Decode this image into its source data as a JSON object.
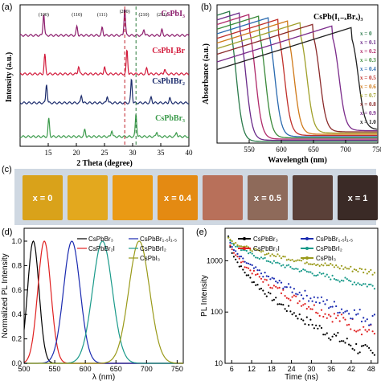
{
  "panels": {
    "a": {
      "letter": "(a)",
      "xlabel": "2 Theta (degree)",
      "ylabel": "Intensity (a.u.)",
      "xticks": [
        "15",
        "20",
        "25",
        "30",
        "35",
        "40"
      ],
      "peak_labels": [
        "(100)",
        "(110)",
        "(111)",
        "(200)",
        "(210)",
        "(211)"
      ],
      "curves": [
        {
          "name": "CsPbI₃",
          "color": "#8b1a6b"
        },
        {
          "name": "CsPbI₂Br",
          "color": "#d2193a"
        },
        {
          "name": "CsPbIBr₂",
          "color": "#1a2a6b"
        },
        {
          "name": "CsPbBr₃",
          "color": "#3a9a4a"
        }
      ]
    },
    "b": {
      "letter": "(b)",
      "xlabel": "Wavelength (nm)",
      "ylabel": "Absorbance (a.u.)",
      "xticks": [
        "550",
        "600",
        "650",
        "700",
        "750"
      ],
      "legend_title": "CsPb(I₁₋ₓBrₓ)₃",
      "x_labels": [
        "x = 0",
        "x = 0.1",
        "x = 0.2",
        "x = 0.3",
        "x = 0.4",
        "x = 0.5",
        "x = 0.6",
        "x = 0.7",
        "x = 0.8",
        "x = 0.9",
        "x = 1.0"
      ],
      "colors": [
        "#2a7a4a",
        "#6a2a8a",
        "#b02a6a",
        "#3a8a3a",
        "#2a6ab0",
        "#c0302a",
        "#d07a1a",
        "#a0a02a",
        "#8a2a2a",
        "#7a2a8a",
        "#202020"
      ]
    },
    "c": {
      "letter": "(c)",
      "tile_labels": [
        "x = 0",
        "x = 0.4",
        "x = 0.5",
        "x = 1"
      ],
      "tile_colors": [
        "#d9a21a",
        "#e3a81e",
        "#ea9a14",
        "#e48a12",
        "#b8705a",
        "#8e6a5a",
        "#5a4038",
        "#3a2a26"
      ]
    },
    "d": {
      "letter": "(d)",
      "xlabel": "λ (nm)",
      "ylabel": "Normalized PL Intensity",
      "xticks": [
        "500",
        "550",
        "600",
        "650",
        "700",
        "750"
      ],
      "yticks": [
        "0.0",
        "0.2",
        "0.4",
        "0.6",
        "0.8",
        "1.0"
      ],
      "legend": [
        {
          "name": "CsPbBr₃",
          "color": "#000000"
        },
        {
          "name": "CsPbBr₂I",
          "color": "#e02020"
        },
        {
          "name": "CsPbBr₁.₅I₁.₅",
          "color": "#1a2ab0"
        },
        {
          "name": "CsPbBrI₂",
          "color": "#1a9a8a"
        },
        {
          "name": "CsPbI₃",
          "color": "#9a9a1a"
        }
      ]
    },
    "e": {
      "letter": "(e)",
      "xlabel": "Time (ns)",
      "ylabel": "PL Intensity",
      "xticks": [
        "6",
        "12",
        "18",
        "24",
        "30",
        "36",
        "42",
        "48"
      ],
      "yticks": [
        "10",
        "100",
        "1000"
      ],
      "legend": [
        {
          "name": "CsPbBr₃",
          "color": "#000000"
        },
        {
          "name": "CsPbBr₂I",
          "color": "#e02020"
        },
        {
          "name": "CsPbBr₁.₅I₁.₅",
          "color": "#1a2ab0"
        },
        {
          "name": "CsPbBrI₂",
          "color": "#1a9a8a"
        },
        {
          "name": "CsPbI₃",
          "color": "#9a9a1a"
        }
      ]
    }
  },
  "chart_data": [
    {
      "type": "line",
      "xlabel": "2 Theta (degree)",
      "ylabel": "Intensity (a.u.)",
      "xlim": [
        10,
        40
      ],
      "series": [
        {
          "name": "CsPbI₃",
          "peaks": [
            14.2,
            20.1,
            24.6,
            28.6,
            32.0,
            35.2
          ]
        },
        {
          "name": "CsPbI₂Br",
          "peaks": [
            14.4,
            20.4,
            25.0,
            29.0,
            32.5,
            35.7
          ]
        },
        {
          "name": "CsPbIBr₂",
          "peaks": [
            14.7,
            20.9,
            25.5,
            29.8,
            33.3,
            36.6
          ]
        },
        {
          "name": "CsPbBr₃",
          "peaks": [
            15.1,
            21.5,
            26.3,
            30.6,
            34.3,
            37.8
          ]
        }
      ]
    },
    {
      "type": "line",
      "xlabel": "Wavelength (nm)",
      "ylabel": "Absorbance (a.u.)",
      "xlim": [
        500,
        750
      ],
      "edges_nm": [
        530,
        545,
        560,
        575,
        590,
        605,
        620,
        640,
        660,
        690,
        720
      ]
    },
    {
      "type": "line",
      "xlabel": "λ (nm)",
      "ylabel": "Normalized PL Intensity",
      "xlim": [
        500,
        760
      ],
      "ylim": [
        0,
        1.0
      ],
      "series": [
        {
          "name": "CsPbBr₃",
          "peak": 515,
          "fwhm": 22
        },
        {
          "name": "CsPbBr₂I",
          "peak": 533,
          "fwhm": 25
        },
        {
          "name": "CsPbBr₁.₅I₁.₅",
          "peak": 578,
          "fwhm": 32
        },
        {
          "name": "CsPbBrI₂",
          "peak": 628,
          "fwhm": 38
        },
        {
          "name": "CsPbI₃",
          "peak": 688,
          "fwhm": 40
        }
      ]
    },
    {
      "type": "scatter",
      "xlabel": "Time (ns)",
      "ylabel": "PL Intensity",
      "xlim": [
        4,
        50
      ],
      "ylim": [
        10,
        4000
      ],
      "yscale": "log",
      "series": [
        {
          "name": "CsPbBr₃",
          "start": 3000,
          "end": 14
        },
        {
          "name": "CsPbBr₂I",
          "start": 3000,
          "end": 40
        },
        {
          "name": "CsPbBr₁.₅I₁.₅",
          "start": 3000,
          "end": 70
        },
        {
          "name": "CsPbBrI₂",
          "start": 3000,
          "end": 320
        },
        {
          "name": "CsPbI₃",
          "start": 3000,
          "end": 600
        }
      ]
    }
  ]
}
